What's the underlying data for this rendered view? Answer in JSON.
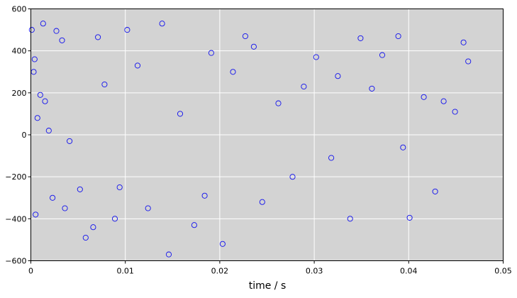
{
  "chart_data": {
    "type": "scatter",
    "title": "",
    "xlabel": "time / s",
    "ylabel": "",
    "xlim": [
      0,
      0.05
    ],
    "ylim": [
      -600,
      600
    ],
    "x_ticks": [
      0,
      0.01,
      0.02,
      0.03,
      0.04,
      0.05
    ],
    "x_tick_labels": [
      "0",
      "0.01",
      "0.02",
      "0.03",
      "0.04",
      "0.05"
    ],
    "y_ticks": [
      -600,
      -400,
      -200,
      0,
      200,
      400,
      600
    ],
    "y_tick_labels": [
      "−600",
      "−400",
      "−200",
      "0",
      "200",
      "400",
      "600"
    ],
    "grid": true,
    "legend": "none",
    "marker": "open-circle",
    "colors": {
      "marker": "#1010ee",
      "plot_background": "#d3d3d3",
      "grid": "#ffffff",
      "figure_background": "#ffffff"
    },
    "series": [
      {
        "x": [
          0.0001,
          0.0004,
          0.0013,
          0.0027,
          0.0003,
          0.001,
          0.0015,
          0.0033,
          0.0007,
          0.0019,
          0.0041,
          0.0052,
          0.0005,
          0.0023,
          0.0036,
          0.0058,
          0.0066,
          0.0071,
          0.0078,
          0.0089,
          0.0094,
          0.0102,
          0.0113,
          0.0124,
          0.0139,
          0.0146,
          0.0158,
          0.0173,
          0.0184,
          0.0191,
          0.0203,
          0.0214,
          0.0227,
          0.0236,
          0.0245,
          0.0262,
          0.0277,
          0.0289,
          0.0302,
          0.0318,
          0.0325,
          0.0338,
          0.0349,
          0.0361,
          0.0372,
          0.0389,
          0.0394,
          0.0401,
          0.0416,
          0.0428,
          0.0437,
          0.0449,
          0.0458,
          0.0463
        ],
        "y": [
          500,
          360,
          530,
          495,
          300,
          190,
          160,
          450,
          80,
          20,
          -30,
          -260,
          -380,
          -300,
          -350,
          -490,
          -440,
          465,
          240,
          -400,
          -250,
          500,
          330,
          -350,
          530,
          -570,
          100,
          -430,
          -290,
          390,
          -520,
          300,
          470,
          420,
          -320,
          150,
          -200,
          230,
          370,
          -110,
          280,
          -400,
          460,
          220,
          380,
          470,
          -60,
          -395,
          180,
          -270,
          160,
          110,
          440,
          350
        ]
      }
    ]
  }
}
